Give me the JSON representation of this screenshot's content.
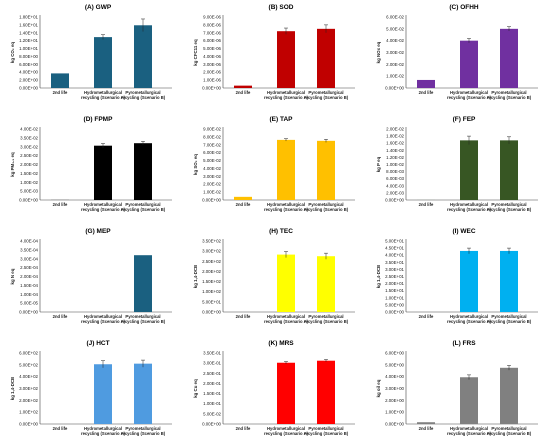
{
  "chart_data": [
    {
      "type": "bar",
      "title": "(A) GWP",
      "ylabel": "kg CO₂ eq",
      "categories": [
        "2nd life",
        "Hydrometallurgical recycling (Scenario A)",
        "Pyrometallurgical recycling (Scenario B)"
      ],
      "values": [
        3.7,
        12.9,
        15.9
      ],
      "errors": [
        0,
        0.6,
        1.6
      ],
      "yticks": [
        "0.00E+00",
        "2.00E+00",
        "4.00E+00",
        "6.00E+00",
        "8.00E+00",
        "1.00E+01",
        "1.20E+01",
        "1.40E+01",
        "1.60E+01",
        "1.80E+01"
      ],
      "ylim": [
        0,
        18
      ],
      "color": "#1a6080"
    },
    {
      "type": "bar",
      "title": "(B) SOD",
      "ylabel": "kg CFC11 eq",
      "categories": [
        "2nd life",
        "Hydrometallurgical recycling (Scenario A)",
        "Pyrometallurgical recycling (Scenario B)"
      ],
      "values": [
        3e-07,
        7.2e-06,
        7.5e-06
      ],
      "errors": [
        0,
        4e-07,
        5e-07
      ],
      "yticks": [
        "0.00E+00",
        "1.00E-06",
        "2.00E-06",
        "3.00E-06",
        "4.00E-06",
        "5.00E-06",
        "6.00E-06",
        "7.00E-06",
        "8.00E-06",
        "9.00E-06"
      ],
      "ylim": [
        0,
        9e-06
      ],
      "color": "#c00000"
    },
    {
      "type": "bar",
      "title": "(C) OFHH",
      "ylabel": "kg NOx eq",
      "categories": [
        "2nd life",
        "Hydrometallurgical recycling (Scenario A)",
        "Pyrometallurgical recycling (Scenario B)"
      ],
      "values": [
        0.0068,
        0.04,
        0.05
      ],
      "errors": [
        0,
        0.0018,
        0.0018
      ],
      "yticks": [
        "0.00E+00",
        "1.00E-02",
        "2.00E-02",
        "3.00E-02",
        "4.00E-02",
        "5.00E-02",
        "6.00E-02"
      ],
      "ylim": [
        0,
        0.06
      ],
      "color": "#7030a0"
    },
    {
      "type": "bar",
      "title": "(D) FPMP",
      "ylabel": "kg PM₂.₅ eq",
      "categories": [
        "2nd life",
        "Hydrometallurgical recycling (Scenario A)",
        "Pyrometallurgical recycling (Scenario B)"
      ],
      "values": [
        5e-05,
        0.0306,
        0.032
      ],
      "errors": [
        0,
        0.0012,
        0.001
      ],
      "yticks": [
        "0.00E+00",
        "5.00E-03",
        "1.00E-02",
        "1.50E-02",
        "2.00E-02",
        "2.50E-02",
        "3.00E-02",
        "3.50E-02",
        "4.00E-02"
      ],
      "ylim": [
        0,
        0.04
      ],
      "color": "#000000"
    },
    {
      "type": "bar",
      "title": "(E) TAP",
      "ylabel": "kg SO₂ eq",
      "categories": [
        "2nd life",
        "Hydrometallurgical recycling (Scenario A)",
        "Pyrometallurgical recycling (Scenario B)"
      ],
      "values": [
        0.004,
        0.0762,
        0.075
      ],
      "errors": [
        0,
        0.0015,
        0.002
      ],
      "yticks": [
        "0.00E+00",
        "1.00E-02",
        "2.00E-02",
        "3.00E-02",
        "4.00E-02",
        "5.00E-02",
        "6.00E-02",
        "7.00E-02",
        "8.00E-02",
        "9.00E-02"
      ],
      "ylim": [
        0,
        0.09
      ],
      "color": "#ffc000"
    },
    {
      "type": "bar",
      "title": "(F) FEP",
      "ylabel": "kg P eq",
      "categories": [
        "2nd life",
        "Hydrometallurgical recycling (Scenario A)",
        "Pyrometallurgical recycling (Scenario B)"
      ],
      "values": [
        1e-05,
        0.0168,
        0.0168
      ],
      "errors": [
        0,
        0.0012,
        0.001
      ],
      "yticks": [
        "0.00E+00",
        "2.00E-03",
        "4.00E-03",
        "6.00E-03",
        "8.00E-03",
        "1.00E-02",
        "1.20E-02",
        "1.40E-02",
        "1.60E-02",
        "1.80E-02",
        "2.00E-02"
      ],
      "ylim": [
        0,
        0.02
      ],
      "color": "#375623"
    },
    {
      "type": "bar",
      "title": "(G) MEP",
      "ylabel": "kg N eq",
      "categories": [
        "2nd life",
        "Hydrometallurgical recycling (Scenario A)",
        "Pyrometallurgical recycling (Scenario B)"
      ],
      "values": [
        0,
        0,
        0.00032
      ],
      "errors": [
        0,
        0,
        0
      ],
      "yticks": [
        "0.00E+00",
        "5.00E-05",
        "1.00E-04",
        "1.50E-04",
        "2.00E-04",
        "2.50E-04",
        "3.00E-04",
        "3.50E-04",
        "4.00E-04"
      ],
      "ylim": [
        0,
        0.0004
      ],
      "color": "#1a6080"
    },
    {
      "type": "bar",
      "title": "(H) TEC",
      "ylabel": "kg 1,4-DCB",
      "categories": [
        "2nd life",
        "Hydrometallurgical recycling (Scenario A)",
        "Pyrometallurgical recycling (Scenario B)"
      ],
      "values": [
        0,
        283,
        275
      ],
      "errors": [
        0,
        15,
        15
      ],
      "yticks": [
        "0.00E+00",
        "5.00E+01",
        "1.00E+02",
        "1.50E+02",
        "2.00E+02",
        "2.50E+02",
        "3.00E+02",
        "3.50E+02"
      ],
      "ylim": [
        0,
        350
      ],
      "color": "#ffff00"
    },
    {
      "type": "bar",
      "title": "(I) WEC",
      "ylabel": "kg 1,4-DCB",
      "categories": [
        "2nd life",
        "Hydrometallurgical recycling (Scenario A)",
        "Pyrometallurgical recycling (Scenario B)"
      ],
      "values": [
        0,
        43,
        43
      ],
      "errors": [
        0,
        2,
        2
      ],
      "yticks": [
        "0.00E+00",
        "5.00E+00",
        "1.00E+01",
        "1.50E+01",
        "2.00E+01",
        "2.50E+01",
        "3.00E+01",
        "3.50E+01",
        "4.00E+01",
        "4.50E+01",
        "5.00E+01"
      ],
      "ylim": [
        0,
        50
      ],
      "color": "#00b0f0"
    },
    {
      "type": "bar",
      "title": "(J) HCT",
      "ylabel": "kg 1,4-DCB",
      "categories": [
        "2nd life",
        "Hydrometallurgical recycling (Scenario A)",
        "Pyrometallurgical recycling (Scenario B)"
      ],
      "values": [
        0,
        505,
        510
      ],
      "errors": [
        0,
        30,
        30
      ],
      "yticks": [
        "0.00E+00",
        "1.00E+02",
        "2.00E+02",
        "3.00E+02",
        "4.00E+02",
        "5.00E+02",
        "6.00E+02"
      ],
      "ylim": [
        0,
        600
      ],
      "color": "#4f9be0"
    },
    {
      "type": "bar",
      "title": "(K) MRS",
      "ylabel": "kg Cu eq",
      "categories": [
        "2nd life",
        "Hydrometallurgical recycling (Scenario A)",
        "Pyrometallurgical recycling (Scenario B)"
      ],
      "values": [
        0,
        0.302,
        0.312
      ],
      "errors": [
        0,
        0.006,
        0.006
      ],
      "yticks": [
        "0.00E+00",
        "5.00E-02",
        "1.00E-01",
        "1.50E-01",
        "2.00E-01",
        "2.50E-01",
        "3.00E-01",
        "3.50E-01"
      ],
      "ylim": [
        0,
        0.35
      ],
      "color": "#ff0000"
    },
    {
      "type": "bar",
      "title": "(L) FRS",
      "ylabel": "kg oil eq",
      "categories": [
        "2nd life",
        "Hydrometallurgical recycling (Scenario A)",
        "Pyrometallurgical recycling (Scenario B)"
      ],
      "values": [
        0.15,
        3.95,
        4.75
      ],
      "errors": [
        0,
        0.2,
        0.2
      ],
      "yticks": [
        "0.00E+00",
        "1.00E+00",
        "2.00E+00",
        "3.00E+00",
        "4.00E+00",
        "5.00E+00",
        "6.00E+00"
      ],
      "ylim": [
        0,
        6
      ],
      "color": "#808080"
    }
  ]
}
